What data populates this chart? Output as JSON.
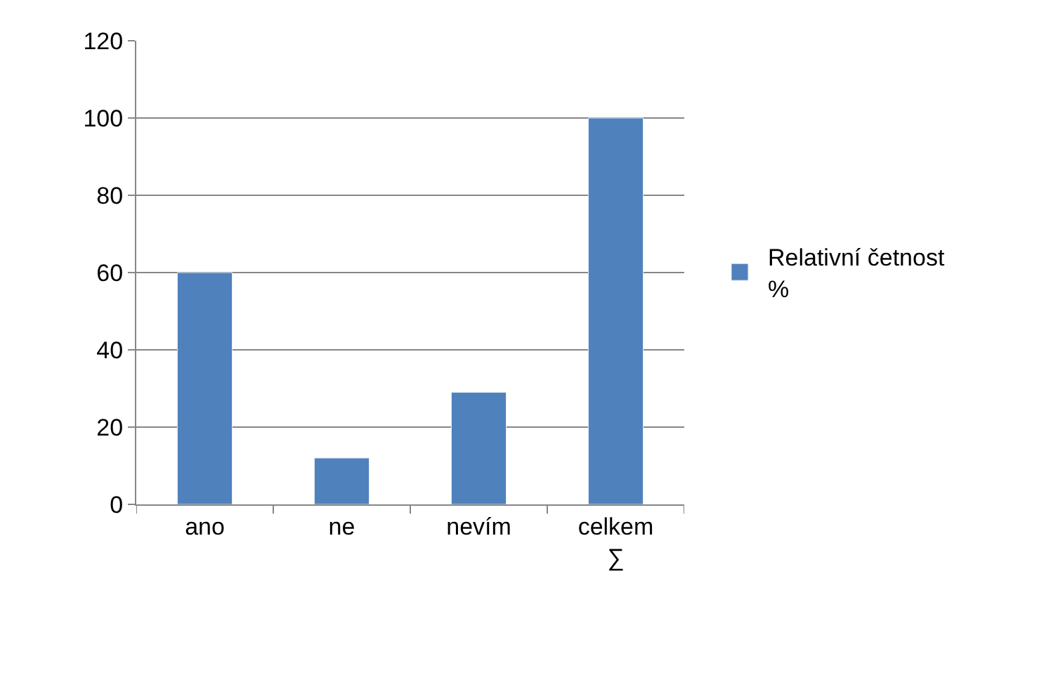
{
  "chart_data": {
    "type": "bar",
    "categories": [
      "ano",
      "ne",
      "nevím",
      "celkem\n∑"
    ],
    "series": [
      {
        "name": "Relativní četnost\n%",
        "color": "#4f81bd",
        "values": [
          60,
          12,
          29,
          100
        ]
      }
    ],
    "ylim": [
      0,
      120
    ],
    "yticks": [
      0,
      20,
      40,
      60,
      80,
      100,
      120
    ],
    "grid": "y",
    "legend": "right"
  }
}
